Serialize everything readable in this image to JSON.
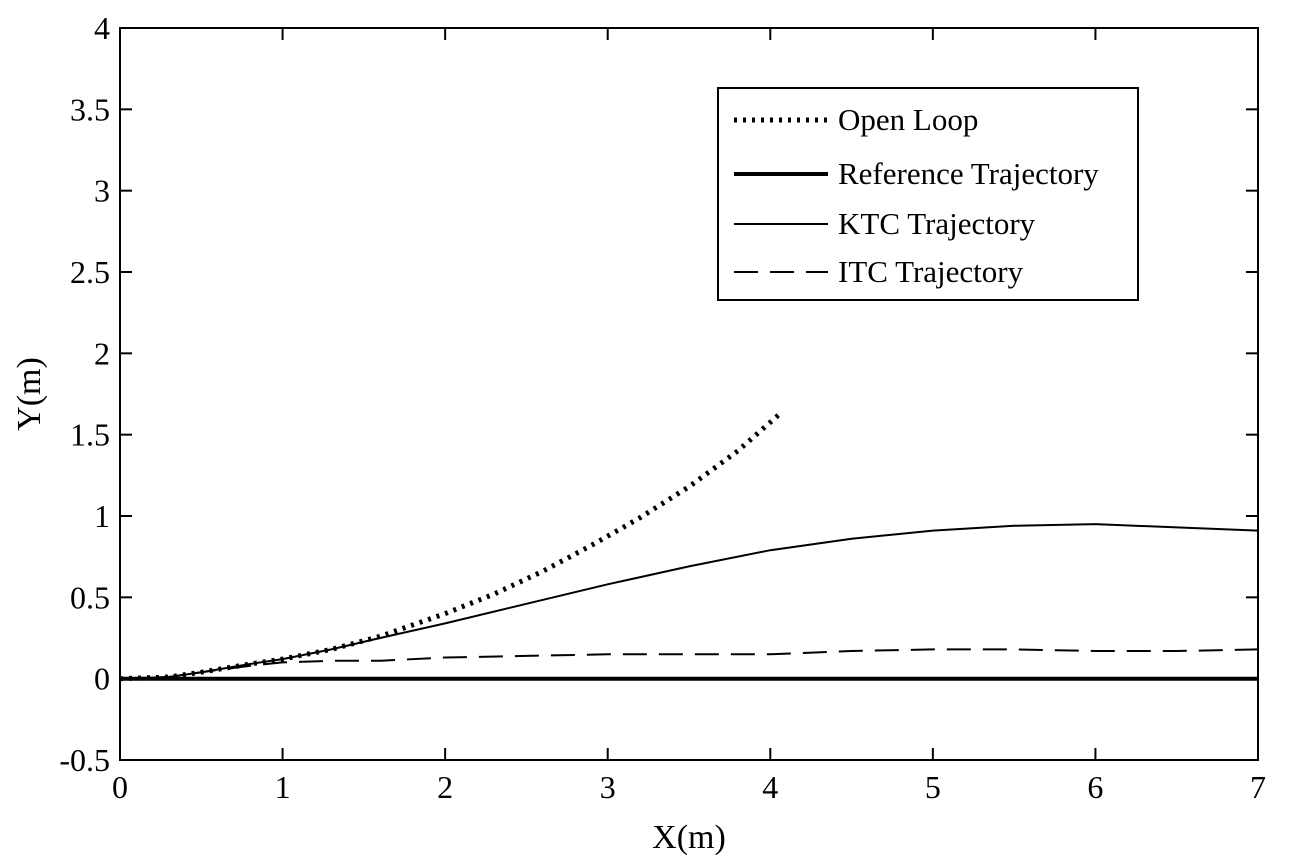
{
  "chart_data": {
    "type": "line",
    "xlabel": "X(m)",
    "ylabel": "Y(m)",
    "xlim": [
      0,
      7
    ],
    "ylim": [
      -0.5,
      4
    ],
    "xticks": [
      "0",
      "1",
      "2",
      "3",
      "4",
      "5",
      "6",
      "7"
    ],
    "yticks": [
      "-0.5",
      "0",
      "0.5",
      "1",
      "1.5",
      "2",
      "2.5",
      "3",
      "3.5",
      "4"
    ],
    "grid": false,
    "legend_position": "top-right",
    "series": [
      {
        "name": "Open Loop",
        "style": "dotted",
        "x": [
          0,
          0.3,
          0.5,
          0.8,
          1.0,
          1.3,
          1.6,
          2.0,
          2.3,
          2.6,
          2.9,
          3.2,
          3.5,
          3.8,
          4.05
        ],
        "y": [
          0,
          0.01,
          0.04,
          0.09,
          0.12,
          0.18,
          0.26,
          0.4,
          0.52,
          0.66,
          0.82,
          0.99,
          1.18,
          1.4,
          1.62
        ]
      },
      {
        "name": "Reference Trajectory",
        "style": "thick-solid",
        "x": [
          0,
          7
        ],
        "y": [
          0,
          0
        ]
      },
      {
        "name": "KTC Trajectory",
        "style": "solid",
        "x": [
          0,
          0.3,
          0.5,
          0.8,
          1.0,
          1.3,
          1.6,
          2.0,
          2.5,
          3.0,
          3.5,
          4.0,
          4.5,
          5.0,
          5.5,
          6.0,
          6.5,
          7.0
        ],
        "y": [
          0,
          0.01,
          0.04,
          0.09,
          0.12,
          0.18,
          0.25,
          0.34,
          0.46,
          0.58,
          0.69,
          0.79,
          0.86,
          0.91,
          0.94,
          0.95,
          0.93,
          0.91
        ]
      },
      {
        "name": "ITC Trajectory",
        "style": "dashed",
        "x": [
          0,
          0.3,
          0.5,
          0.8,
          1.0,
          1.3,
          1.6,
          2.0,
          2.5,
          3.0,
          3.5,
          4.0,
          4.5,
          5.0,
          5.5,
          6.0,
          6.5,
          7.0
        ],
        "y": [
          0,
          0.01,
          0.04,
          0.08,
          0.1,
          0.11,
          0.11,
          0.13,
          0.14,
          0.15,
          0.15,
          0.15,
          0.17,
          0.18,
          0.18,
          0.17,
          0.17,
          0.18
        ]
      }
    ]
  }
}
